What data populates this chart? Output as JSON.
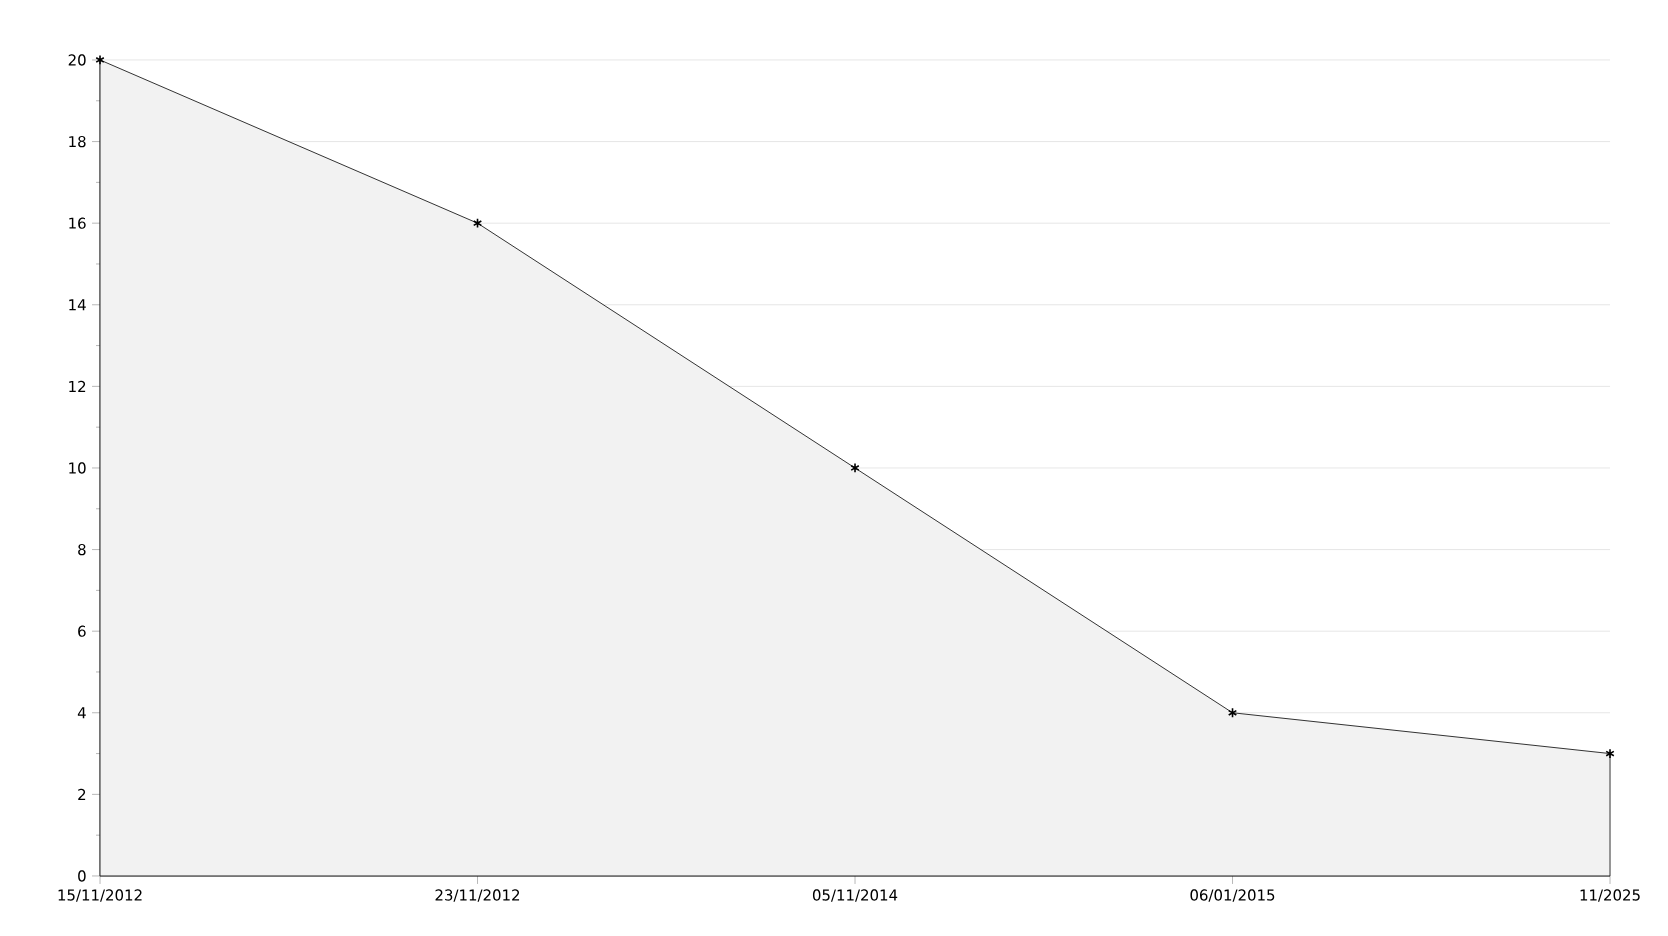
{
  "chart_data": {
    "type": "area",
    "categories": [
      "15/11/2012",
      "23/11/2012",
      "05/11/2014",
      "06/01/2015",
      "11/2025"
    ],
    "values": [
      20,
      16,
      10,
      4,
      3
    ],
    "color": "#f2f2f2",
    "ylim": [
      0,
      20
    ],
    "yticks": [
      0,
      2,
      4,
      6,
      8,
      10,
      12,
      14,
      16,
      18,
      20
    ],
    "grid": "y",
    "marker": "cross"
  }
}
